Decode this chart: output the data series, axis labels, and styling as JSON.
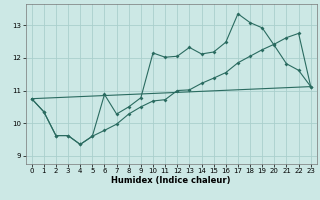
{
  "xlabel": "Humidex (Indice chaleur)",
  "xlim": [
    -0.5,
    23.5
  ],
  "ylim": [
    8.75,
    13.65
  ],
  "xticks": [
    0,
    1,
    2,
    3,
    4,
    5,
    6,
    7,
    8,
    9,
    10,
    11,
    12,
    13,
    14,
    15,
    16,
    17,
    18,
    19,
    20,
    21,
    22,
    23
  ],
  "yticks": [
    9,
    10,
    11,
    12,
    13
  ],
  "bg_color": "#cce8e5",
  "grid_color": "#aacfcc",
  "line_color": "#2a6b60",
  "line1_x": [
    0,
    1,
    2,
    3,
    4,
    5,
    6,
    7,
    8,
    9,
    10,
    11,
    12,
    13,
    14,
    15,
    16,
    17,
    18,
    19,
    20,
    21,
    22,
    23
  ],
  "line1_y": [
    10.75,
    10.35,
    9.62,
    9.62,
    9.35,
    9.6,
    9.78,
    9.97,
    10.28,
    10.5,
    10.68,
    10.72,
    11.0,
    11.02,
    11.22,
    11.38,
    11.55,
    11.85,
    12.05,
    12.25,
    12.42,
    12.62,
    12.75,
    11.12
  ],
  "line2_x": [
    0,
    1,
    2,
    3,
    4,
    5,
    6,
    7,
    8,
    9,
    10,
    11,
    12,
    13,
    14,
    15,
    16,
    17,
    18,
    19,
    20,
    21,
    22,
    23
  ],
  "line2_y": [
    10.75,
    10.35,
    9.62,
    9.62,
    9.35,
    9.6,
    10.88,
    10.28,
    10.5,
    10.78,
    12.15,
    12.02,
    12.05,
    12.32,
    12.12,
    12.18,
    12.48,
    13.35,
    13.08,
    12.92,
    12.38,
    11.82,
    11.62,
    11.12
  ],
  "line3_x": [
    0,
    23
  ],
  "line3_y": [
    10.75,
    11.12
  ]
}
